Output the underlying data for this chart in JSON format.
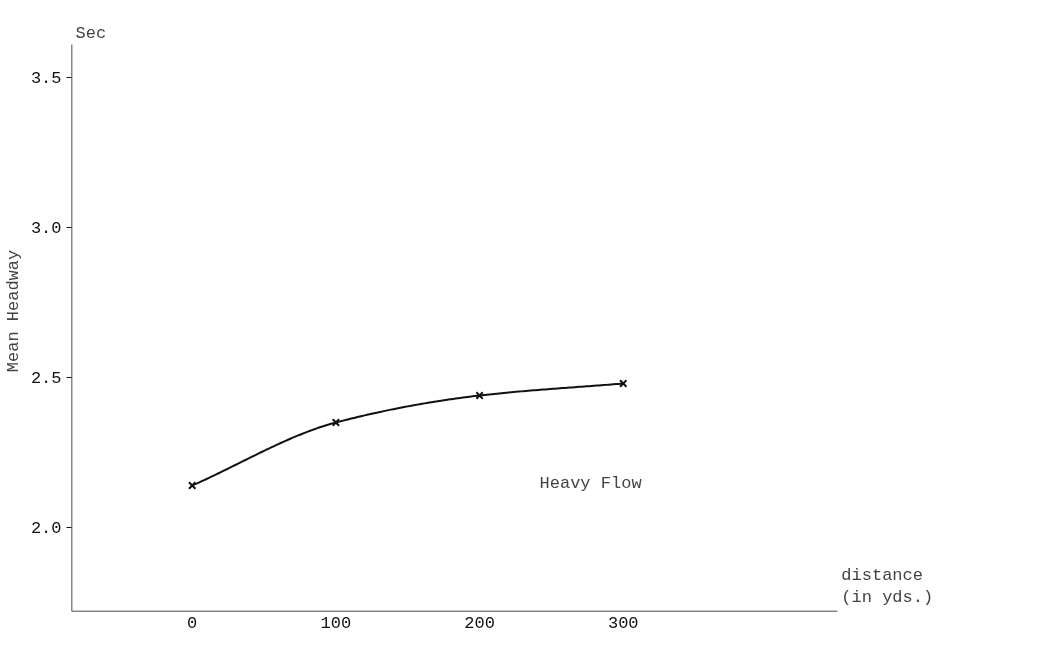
{
  "chart_data": {
    "type": "line",
    "xlabel": "distance\n(in yds.)",
    "ylabel": "Mean Headway",
    "x": [
      0,
      100,
      200,
      300
    ],
    "series": [
      {
        "values": [
          2.14,
          2.35,
          2.44,
          2.48
        ],
        "color": "#111111"
      }
    ],
    "marker": "cross",
    "line_style": "solid",
    "xlim": [
      -84,
      449
    ],
    "ylim": [
      1.72,
      3.61
    ],
    "xticks": [
      0,
      100,
      200,
      300
    ],
    "yticks": [
      {
        "value": 2.0,
        "label": "2.0"
      },
      2.5,
      {
        "value": 3.0,
        "label": "3.0"
      },
      3.5
    ],
    "annotations": [
      "Sec",
      "Heavy Flow"
    ],
    "grid": false
  }
}
